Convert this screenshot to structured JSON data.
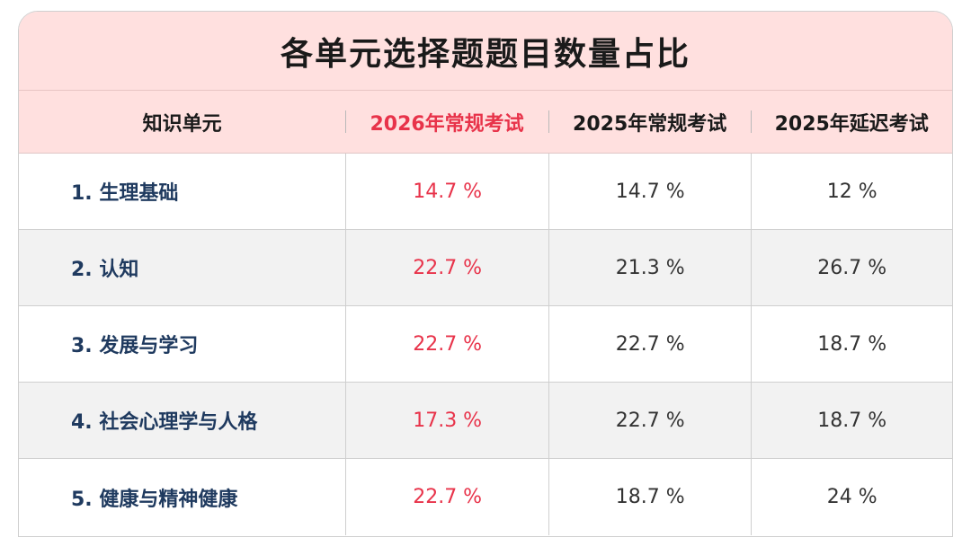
{
  "title": "各单元选择题题目数量占比",
  "colors": {
    "header_bg": "#ffe0df",
    "highlight": "#e8334a",
    "unit_text": "#1f3a5f",
    "alt_row_bg": "#f2f2f2"
  },
  "header": {
    "unit": "知识单元",
    "col_2026_regular": "2026年常规考试",
    "col_2025_regular": "2025年常规考试",
    "col_2025_delayed": "2025年延迟考试"
  },
  "rows": [
    {
      "unit": "1. 生理基础",
      "v2026": "14.7 %",
      "v2025": "14.7 %",
      "v2025d": "12 %"
    },
    {
      "unit": "2. 认知",
      "v2026": "22.7 %",
      "v2025": "21.3 %",
      "v2025d": "26.7 %"
    },
    {
      "unit": "3. 发展与学习",
      "v2026": "22.7 %",
      "v2025": "22.7 %",
      "v2025d": "18.7 %"
    },
    {
      "unit": "4. 社会心理学与人格",
      "v2026": "17.3 %",
      "v2025": "22.7 %",
      "v2025d": "18.7 %"
    },
    {
      "unit": "5. 健康与精神健康",
      "v2026": "22.7 %",
      "v2025": "18.7 %",
      "v2025d": "24 %"
    }
  ]
}
